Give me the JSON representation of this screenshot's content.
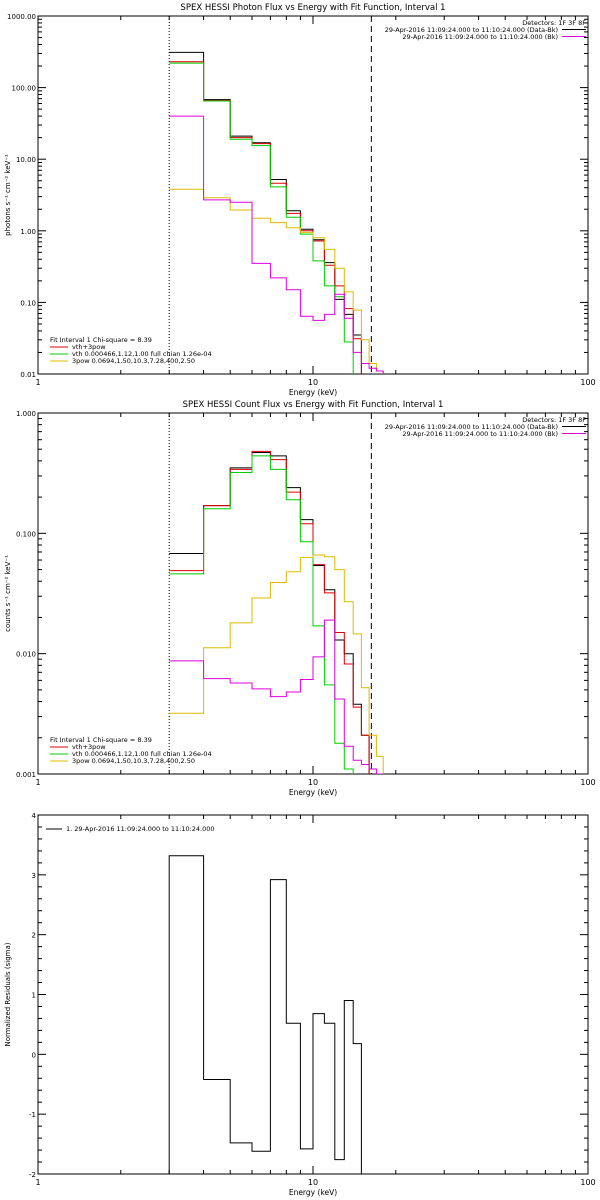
{
  "chart_data": [
    {
      "type": "line",
      "title": "SPEX HESSI Photon Flux vs Energy with Fit Function, Interval 1",
      "xlabel": "Energy (keV)",
      "ylabel": "photons s⁻¹ cm⁻² keV⁻¹",
      "xscale": "log",
      "yscale": "log",
      "xlim": [
        1,
        100
      ],
      "ylim": [
        0.01,
        1000
      ],
      "x_ticks": [
        {
          "value": 1,
          "label": "1"
        },
        {
          "value": 10,
          "label": "10"
        },
        {
          "value": 100,
          "label": "100"
        }
      ],
      "y_ticks": [
        {
          "value": 0.01,
          "label": "0.01"
        },
        {
          "value": 0.1,
          "label": "0.10"
        },
        {
          "value": 1,
          "label": "1.00"
        },
        {
          "value": 10,
          "label": "10.00"
        },
        {
          "value": 100,
          "label": "100.00"
        },
        {
          "value": 1000,
          "label": "1000.00"
        }
      ],
      "vlines": [
        {
          "x": 3.0,
          "style": "dotted",
          "color": "#000000"
        },
        {
          "x": 16.3,
          "style": "dashed",
          "color": "#000000"
        }
      ],
      "header_text": {
        "detectors": "Detectors: 1F 3F 8F",
        "line1": "29-Apr-2016 11:09:24.000 to 11:10:24.000 (Data-Bk)",
        "line2": "29-Apr-2016 11:09:24.000 to 11:10:24.000 (Bk)"
      },
      "header_legend": [
        {
          "color": "#000000"
        },
        {
          "color": "#dd00dd"
        }
      ],
      "legend": {
        "title": "Fit Interval 1   Chi-square = 8.39",
        "entries": [
          {
            "label": "vth+3pow",
            "color": "#dd0000"
          },
          {
            "label": "vth 0.000466,1.12,1.00   full chian 1.26e-04",
            "color": "#00cc00"
          },
          {
            "label": "3pow 0.0694,1.50,10.3,7.28,400,2.50",
            "color": "#ddbb00"
          }
        ]
      },
      "edges": [
        3.0,
        4.0,
        5.0,
        6.0,
        7.0,
        8.0,
        9.0,
        10.0,
        11.0,
        12.0,
        13.0,
        14.0,
        15.0,
        16.0,
        17.0,
        18.0
      ],
      "series": [
        {
          "name": "Data-Bk",
          "color": "#000000",
          "values": [
            310,
            68,
            21,
            17,
            5.2,
            1.9,
            1.05,
            0.75,
            0.36,
            0.11,
            0.068,
            0.035,
            null,
            null,
            null
          ]
        },
        {
          "name": "vth+3pow",
          "color": "#dd0000",
          "values": [
            230,
            66,
            20,
            16.5,
            4.6,
            1.75,
            1.0,
            0.72,
            0.33,
            0.17,
            0.082,
            0.031,
            null,
            null,
            null
          ]
        },
        {
          "name": "vth",
          "color": "#00cc00",
          "values": [
            220,
            65,
            19,
            15.5,
            4.1,
            1.55,
            0.9,
            0.38,
            0.17,
            0.12,
            0.028,
            null,
            null,
            null,
            null
          ]
        },
        {
          "name": "3pow",
          "color": "#ddbb00",
          "values": [
            3.8,
            2.9,
            1.95,
            1.5,
            1.3,
            1.1,
            0.95,
            0.8,
            0.55,
            0.3,
            0.14,
            0.078,
            0.03,
            0.014,
            0.011
          ]
        },
        {
          "name": "Bk",
          "color": "#dd00dd",
          "values": [
            40,
            2.7,
            2.5,
            0.35,
            0.22,
            0.15,
            0.064,
            0.056,
            0.068,
            0.13,
            0.06,
            0.02,
            0.014,
            0.012,
            0.011
          ]
        }
      ]
    },
    {
      "type": "line",
      "title": "SPEX HESSI Count Flux vs Energy with Fit Function, Interval 1",
      "xlabel": "Energy (keV)",
      "ylabel": "counts s⁻¹ cm⁻² keV⁻¹",
      "xscale": "log",
      "yscale": "log",
      "xlim": [
        1,
        100
      ],
      "ylim": [
        0.001,
        1
      ],
      "x_ticks": [
        {
          "value": 1,
          "label": "1"
        },
        {
          "value": 10,
          "label": "10"
        },
        {
          "value": 100,
          "label": "100"
        }
      ],
      "y_ticks": [
        {
          "value": 0.001,
          "label": "0.001"
        },
        {
          "value": 0.01,
          "label": "0.010"
        },
        {
          "value": 0.1,
          "label": "0.100"
        },
        {
          "value": 1,
          "label": "1.000"
        }
      ],
      "vlines": [
        {
          "x": 3.0,
          "style": "dotted",
          "color": "#000000"
        },
        {
          "x": 16.3,
          "style": "dashed",
          "color": "#000000"
        }
      ],
      "header_text": {
        "detectors": "Detectors: 1F 3F 8F",
        "line1": "29-Apr-2016 11:09:24.000 to 11:10:24.000 (Data-Bk)",
        "line2": "29-Apr-2016 11:09:24.000 to 11:10:24.000 (Bk)"
      },
      "header_legend": [
        {
          "color": "#000000"
        },
        {
          "color": "#dd00dd"
        }
      ],
      "legend": {
        "title": "Fit Interval 1   Chi-square = 8.39",
        "entries": [
          {
            "label": "vth+3pow",
            "color": "#dd0000"
          },
          {
            "label": "vth 0.000466,1.12,1.00   full chian 1.26e-04",
            "color": "#00cc00"
          },
          {
            "label": "3pow 0.0694,1.50,10.3,7.28,400,2.50",
            "color": "#ddbb00"
          }
        ]
      },
      "edges": [
        3.0,
        4.0,
        5.0,
        6.0,
        7.0,
        8.0,
        9.0,
        10.0,
        11.0,
        12.0,
        13.0,
        14.0,
        15.0,
        16.0,
        17.0,
        18.0
      ],
      "series": [
        {
          "name": "Data-Bk",
          "color": "#000000",
          "values": [
            0.068,
            0.17,
            0.35,
            0.47,
            0.44,
            0.24,
            0.13,
            0.054,
            0.034,
            0.013,
            0.01,
            0.0038,
            0.0021,
            null,
            null
          ]
        },
        {
          "name": "vth+3pow",
          "color": "#dd0000",
          "values": [
            0.049,
            0.17,
            0.34,
            0.48,
            0.41,
            0.22,
            0.12,
            0.055,
            0.032,
            0.015,
            0.0082,
            0.0036,
            0.0021,
            null,
            null
          ]
        },
        {
          "name": "vth",
          "color": "#00cc00",
          "values": [
            0.046,
            0.16,
            0.32,
            0.44,
            0.34,
            0.19,
            0.085,
            0.017,
            0.0055,
            0.0018,
            0.0011,
            null,
            null,
            null,
            null
          ]
        },
        {
          "name": "3pow",
          "color": "#ddbb00",
          "values": [
            0.0032,
            0.0112,
            0.018,
            0.029,
            0.039,
            0.048,
            0.063,
            0.066,
            0.064,
            0.05,
            0.027,
            0.0146,
            0.0052,
            0.0021,
            0.0014
          ]
        },
        {
          "name": "Bk",
          "color": "#dd00dd",
          "values": [
            0.0087,
            0.0062,
            0.0057,
            0.0051,
            0.0044,
            0.0048,
            0.0061,
            0.0094,
            0.019,
            0.0042,
            0.0017,
            0.0013,
            0.0012,
            0.0011,
            0.001
          ]
        }
      ]
    },
    {
      "type": "line",
      "title": "",
      "xlabel": "Energy (keV)",
      "ylabel": "Normalized Residuals (sigma)",
      "xscale": "log",
      "yscale": "linear",
      "xlim": [
        1,
        100
      ],
      "ylim": [
        -2,
        4
      ],
      "x_ticks": [
        {
          "value": 1,
          "label": "1"
        },
        {
          "value": 10,
          "label": "10"
        },
        {
          "value": 100,
          "label": "100"
        }
      ],
      "y_ticks": [
        {
          "value": -2,
          "label": "-2"
        },
        {
          "value": -1,
          "label": "-1"
        },
        {
          "value": 0,
          "label": "0"
        },
        {
          "value": 1,
          "label": "1"
        },
        {
          "value": 2,
          "label": "2"
        },
        {
          "value": 3,
          "label": "3"
        },
        {
          "value": 4,
          "label": "4"
        }
      ],
      "legend": {
        "entries": [
          {
            "label": "1. 29-Apr-2016 11:09:24.000 to 11:10:24.000",
            "color": "#000000"
          }
        ]
      },
      "edges": [
        3.0,
        4.0,
        5.0,
        6.0,
        7.0,
        8.0,
        9.0,
        10.0,
        11.0,
        12.0,
        13.0,
        14.0,
        15.0,
        16.3
      ],
      "series": [
        {
          "name": "residuals",
          "color": "#000000",
          "values": [
            3.32,
            -0.42,
            -1.48,
            -1.62,
            2.92,
            0.52,
            -1.58,
            0.68,
            0.52,
            -1.76,
            0.9,
            0.18,
            null
          ]
        }
      ]
    }
  ]
}
